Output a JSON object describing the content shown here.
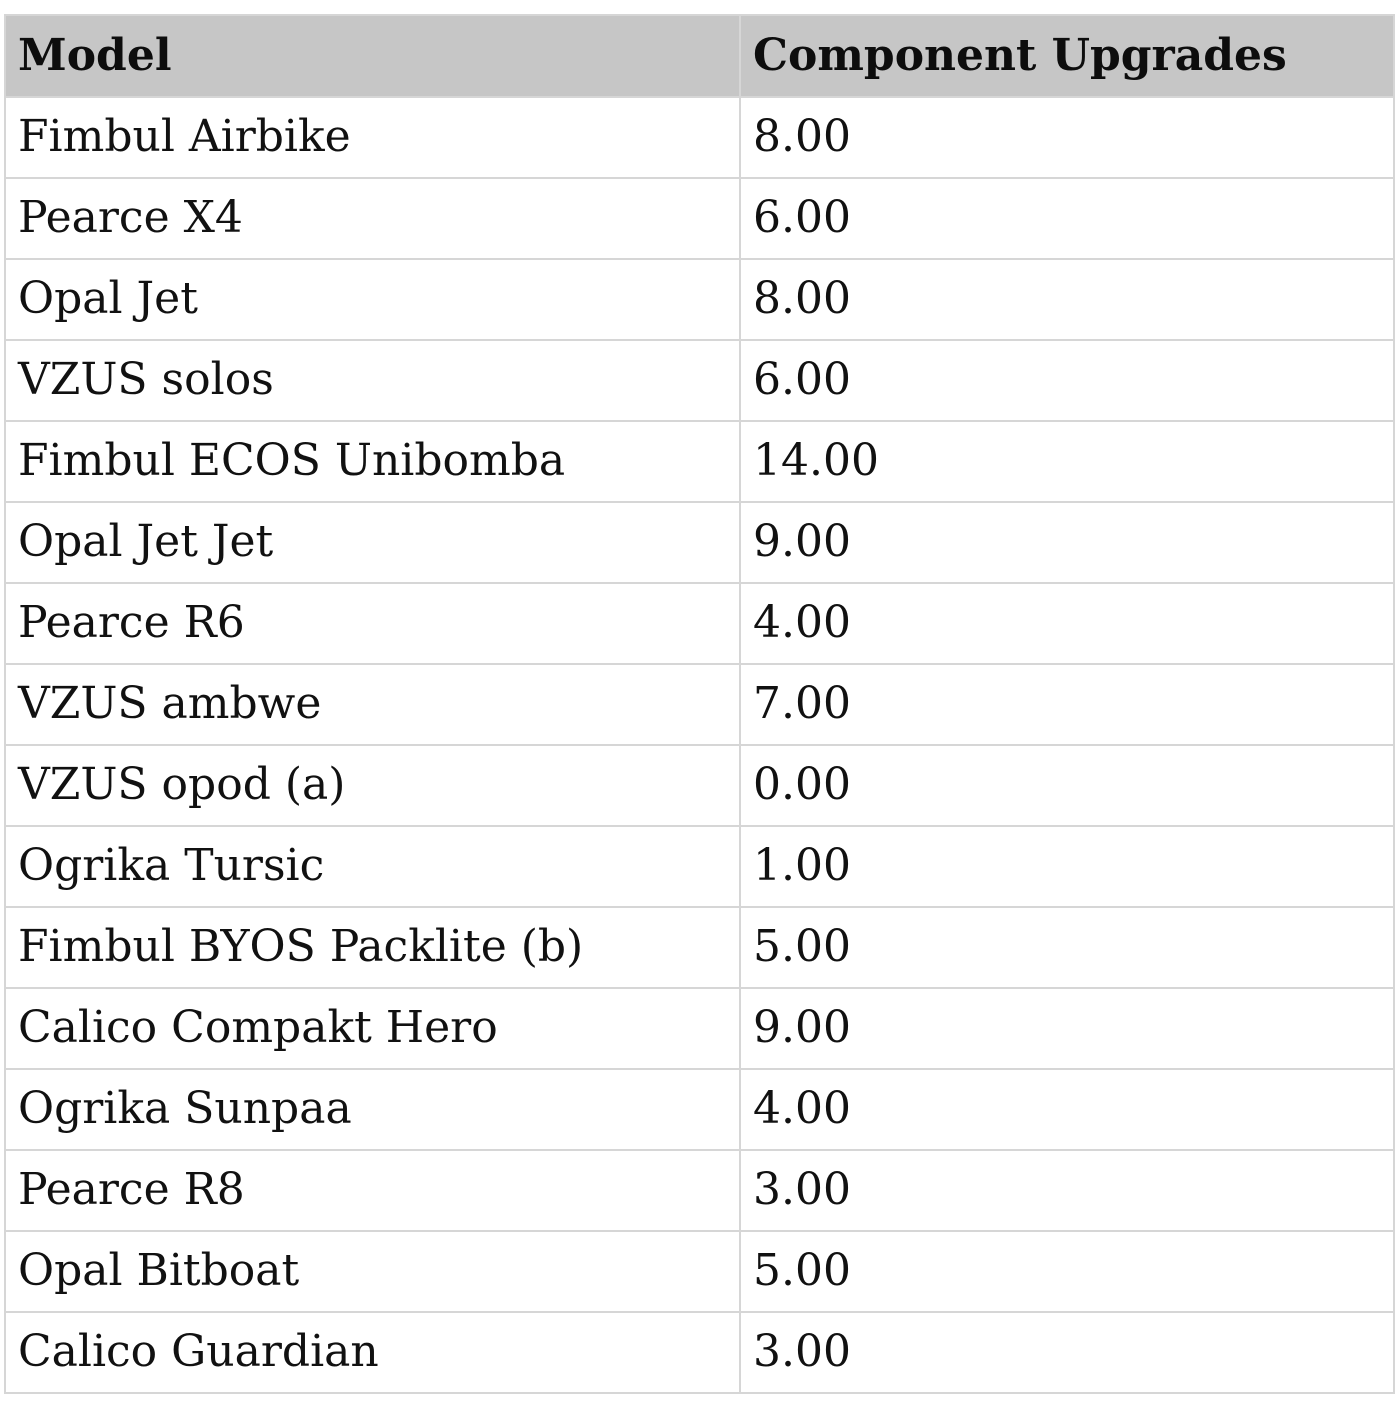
{
  "table": {
    "columns": [
      "Model",
      "Component Upgrades"
    ],
    "rows": [
      {
        "model": "Fimbul Airbike",
        "value": "8.00"
      },
      {
        "model": "Pearce X4",
        "value": "6.00"
      },
      {
        "model": "Opal Jet",
        "value": "8.00"
      },
      {
        "model": "VZUS solos",
        "value": "6.00"
      },
      {
        "model": "Fimbul ECOS Unibomba",
        "value": "14.00"
      },
      {
        "model": "Opal Jet Jet",
        "value": "9.00"
      },
      {
        "model": "Pearce R6",
        "value": "4.00"
      },
      {
        "model": "VZUS ambwe",
        "value": "7.00"
      },
      {
        "model": "VZUS opod (a)",
        "value": "0.00"
      },
      {
        "model": "Ogrika Tursic",
        "value": "1.00"
      },
      {
        "model": "Fimbul BYOS Packlite (b)",
        "value": "5.00"
      },
      {
        "model": "Calico Compakt Hero",
        "value": "9.00"
      },
      {
        "model": "Ogrika Sunpaa",
        "value": "4.00"
      },
      {
        "model": "Pearce R8",
        "value": "3.00"
      },
      {
        "model": "Opal Bitboat",
        "value": "5.00"
      },
      {
        "model": "Calico Guardian",
        "value": "3.00"
      }
    ]
  },
  "chart_data": {
    "type": "table",
    "title": "",
    "columns": [
      "Model",
      "Component Upgrades"
    ],
    "rows": [
      [
        "Fimbul Airbike",
        8.0
      ],
      [
        "Pearce X4",
        6.0
      ],
      [
        "Opal Jet",
        8.0
      ],
      [
        "VZUS solos",
        6.0
      ],
      [
        "Fimbul ECOS Unibomba",
        14.0
      ],
      [
        "Opal Jet Jet",
        9.0
      ],
      [
        "Pearce R6",
        4.0
      ],
      [
        "VZUS ambwe",
        7.0
      ],
      [
        "VZUS opod (a)",
        0.0
      ],
      [
        "Ogrika Tursic",
        1.0
      ],
      [
        "Fimbul BYOS Packlite (b)",
        5.0
      ],
      [
        "Calico Compakt Hero",
        9.0
      ],
      [
        "Ogrika Sunpaa",
        4.0
      ],
      [
        "Pearce R8",
        3.0
      ],
      [
        "Opal Bitboat",
        5.0
      ],
      [
        "Calico Guardian",
        3.0
      ]
    ]
  },
  "colors": {
    "header_bg": "#c6c6c6",
    "border": "#d6d6d6",
    "text": "#111111",
    "background": "#ffffff"
  }
}
